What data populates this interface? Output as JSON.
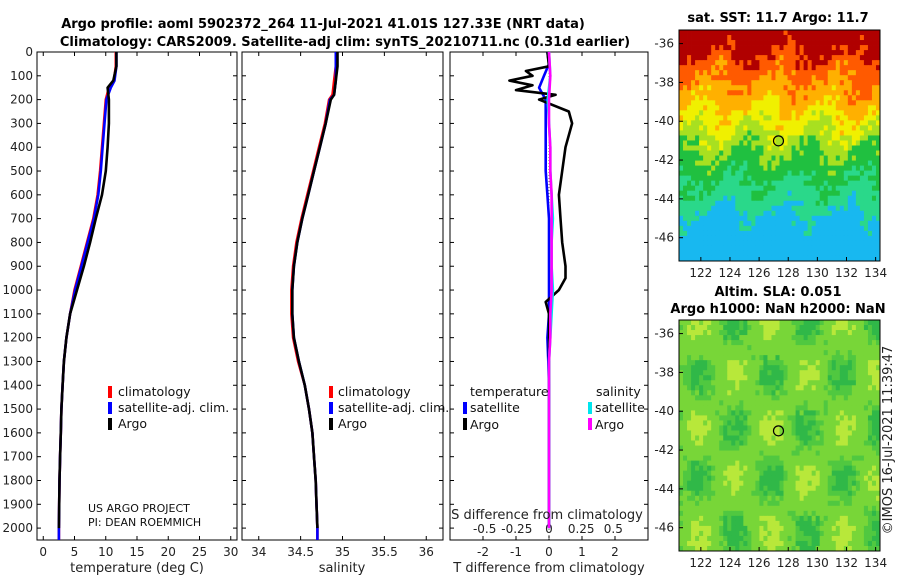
{
  "titles": {
    "line1": "Argo profile: aoml 5902372_264 11-Jul-2021 41.01S 127.33E (NRT data)",
    "line2": "Climatology: CARS2009. Satellite-adj clim: synTS_20210711.nc (0.31d earlier)",
    "sst": "sat. SST: 11.7 Argo: 11.7",
    "sla1": "Altim. SLA: 0.051",
    "sla2": "Argo h1000: NaN h2000: NaN"
  },
  "credit": {
    "line1": "US ARGO PROJECT",
    "line2": "PI: DEAN ROEMMICH"
  },
  "timestamp": "©IMOS 16-Jul-2021 11:39:47",
  "legend_profile": [
    "climatology",
    "satellite-adj. clim.",
    "Argo"
  ],
  "legend_diff": {
    "temp_head": "temperature",
    "sal_head": "salinity",
    "temp_items": [
      "satellite",
      "Argo"
    ],
    "sal_items": [
      "satellite",
      "Argo"
    ]
  },
  "colors": {
    "clim": "#ff0000",
    "sat": "#0000ff",
    "argo": "#000000",
    "sat_sal": "#00e5ee",
    "argo_sal": "#ff00ff"
  },
  "chart_data": [
    {
      "type": "line",
      "name": "temperature",
      "xlabel": "temperature (deg C)",
      "ylabel": "",
      "xlim": [
        -1,
        31
      ],
      "ylim": [
        2050,
        0
      ],
      "xticks": [
        0,
        5,
        10,
        15,
        20,
        25,
        30
      ],
      "yticks": [
        0,
        100,
        200,
        300,
        400,
        500,
        600,
        700,
        800,
        900,
        1000,
        1100,
        1200,
        1300,
        1400,
        1500,
        1600,
        1700,
        1800,
        1900,
        2000
      ],
      "series": [
        {
          "name": "climatology",
          "depth": [
            0,
            60,
            120,
            150,
            200,
            300,
            400,
            500,
            600,
            700,
            800,
            900,
            1000,
            1100,
            1200,
            1300,
            1400,
            1500,
            1600,
            1700,
            1800,
            1900,
            2000,
            2050
          ],
          "values": [
            11.6,
            11.6,
            11.3,
            10.5,
            10.0,
            9.7,
            9.4,
            9.1,
            8.7,
            8.0,
            7.0,
            6.0,
            5.0,
            4.3,
            3.7,
            3.3,
            3.1,
            2.9,
            2.8,
            2.7,
            2.6,
            2.55,
            2.5,
            2.5
          ]
        },
        {
          "name": "satellite-adj. clim.",
          "depth": [
            0,
            60,
            120,
            150,
            200,
            300,
            400,
            500,
            600,
            700,
            800,
            900,
            1000,
            1100,
            1200,
            1300,
            1400,
            1500,
            1600,
            1700,
            1800,
            1900,
            2000,
            2050
          ],
          "values": [
            11.7,
            11.7,
            11.4,
            10.8,
            10.1,
            9.8,
            9.5,
            9.2,
            8.8,
            8.1,
            7.1,
            6.1,
            5.1,
            4.3,
            3.7,
            3.3,
            3.1,
            2.9,
            2.8,
            2.7,
            2.6,
            2.55,
            2.5,
            2.5
          ]
        },
        {
          "name": "Argo",
          "depth": [
            0,
            60,
            120,
            150,
            200,
            300,
            400,
            500,
            600,
            700,
            800,
            900,
            1000,
            1100,
            1200,
            1300,
            1400,
            1500,
            1600,
            1700,
            1800,
            1900,
            2000
          ],
          "values": [
            11.7,
            11.7,
            11.2,
            10.3,
            10.5,
            10.5,
            10.3,
            10.0,
            9.4,
            8.4,
            7.5,
            6.5,
            5.4,
            4.3,
            3.7,
            3.3,
            3.1,
            2.9,
            2.8,
            2.7,
            2.6,
            2.55,
            2.5
          ]
        }
      ]
    },
    {
      "type": "line",
      "name": "salinity",
      "xlabel": "salinity",
      "ylabel": "",
      "xlim": [
        33.8,
        36.2
      ],
      "ylim": [
        2050,
        0
      ],
      "xticks": [
        34,
        34.5,
        35,
        35.5,
        36
      ],
      "xticklabels": [
        "34",
        "34.5",
        "35",
        "35.5",
        "36"
      ],
      "series": [
        {
          "name": "climatology",
          "depth": [
            0,
            60,
            120,
            180,
            200,
            300,
            400,
            500,
            600,
            700,
            800,
            900,
            1000,
            1100,
            1200,
            1300,
            1400,
            1500,
            1600,
            1700,
            1800,
            1900,
            2000,
            2050
          ],
          "values": [
            34.92,
            34.92,
            34.9,
            34.88,
            34.84,
            34.79,
            34.72,
            34.65,
            34.58,
            34.51,
            34.45,
            34.41,
            34.39,
            34.39,
            34.41,
            34.47,
            34.55,
            34.6,
            34.64,
            34.66,
            34.68,
            34.69,
            34.7,
            34.7
          ]
        },
        {
          "name": "satellite-adj. clim.",
          "depth": [
            0,
            60,
            120,
            180,
            200,
            300,
            400,
            500,
            600,
            700,
            800,
            900,
            1000,
            1100,
            1200,
            1300,
            1400,
            1500,
            1600,
            1700,
            1800,
            1900,
            2000,
            2050
          ],
          "values": [
            34.92,
            34.92,
            34.92,
            34.9,
            34.85,
            34.8,
            34.73,
            34.66,
            34.59,
            34.52,
            34.46,
            34.42,
            34.4,
            34.4,
            34.42,
            34.48,
            34.55,
            34.6,
            34.64,
            34.66,
            34.68,
            34.69,
            34.7,
            34.7
          ]
        },
        {
          "name": "Argo",
          "depth": [
            0,
            60,
            120,
            180,
            200,
            300,
            400,
            500,
            600,
            700,
            800,
            900,
            1000,
            1100,
            1200,
            1300,
            1400,
            1500,
            1600,
            1700,
            1800,
            1900,
            2000
          ],
          "values": [
            34.94,
            34.94,
            34.92,
            34.9,
            34.86,
            34.8,
            34.73,
            34.66,
            34.59,
            34.52,
            34.46,
            34.42,
            34.4,
            34.4,
            34.42,
            34.48,
            34.55,
            34.6,
            34.64,
            34.66,
            34.68,
            34.69,
            34.7
          ]
        }
      ]
    },
    {
      "type": "line",
      "name": "difference",
      "xlabel": "T difference from climatology",
      "xlabel_top": "S difference from climatology",
      "xlim": [
        -3,
        3
      ],
      "ylim": [
        2050,
        0
      ],
      "xticks": [
        -2,
        -1,
        0,
        1,
        2
      ],
      "sal_ticks": [
        -0.5,
        -0.25,
        0,
        0.25,
        0.5
      ],
      "sal_ticklabels": [
        "-0.5",
        "-0.25",
        "0",
        "0.25",
        "0.5"
      ],
      "series": [
        {
          "name": "temperature satellite",
          "depth": [
            0,
            50,
            100,
            150,
            200,
            300,
            400,
            500,
            600,
            700,
            800,
            900,
            1000,
            1100,
            1200,
            1300,
            1400,
            1500,
            1600,
            1700,
            1800,
            1900,
            2000
          ],
          "values": [
            -0.05,
            0.0,
            -0.15,
            -0.3,
            -0.1,
            -0.1,
            -0.1,
            -0.1,
            -0.05,
            0.0,
            0.0,
            0.0,
            0.0,
            0.0,
            -0.05,
            -0.02,
            0.0,
            0.0,
            0.0,
            0.0,
            0.0,
            0.0,
            0.0
          ]
        },
        {
          "name": "temperature Argo",
          "depth": [
            0,
            60,
            80,
            100,
            120,
            140,
            160,
            180,
            200,
            250,
            300,
            400,
            500,
            600,
            700,
            800,
            900,
            950,
            1000,
            1050,
            1100,
            1200,
            1300,
            1400,
            1500,
            1600,
            1700,
            1800,
            1900,
            2000
          ],
          "values": [
            -0.05,
            0.0,
            -0.7,
            -0.5,
            -1.2,
            -0.5,
            -1.0,
            0.2,
            -0.3,
            0.6,
            0.7,
            0.5,
            0.4,
            0.3,
            0.35,
            0.4,
            0.5,
            0.5,
            0.3,
            -0.1,
            0.0,
            0.0,
            0.0,
            0.0,
            0.0,
            0.0,
            0.0,
            0.0,
            0.0,
            0.0
          ]
        },
        {
          "name": "salinity satellite",
          "depth": [
            0,
            100,
            200,
            300,
            400,
            500,
            600,
            700,
            800,
            900,
            1000,
            1100,
            1200,
            1300,
            1400,
            1500,
            1600,
            1700,
            1800,
            1900,
            2000
          ],
          "values": [
            0.0,
            0.01,
            -0.01,
            0.0,
            0.01,
            0.01,
            0.02,
            0.03,
            0.02,
            0.02,
            0.03,
            0.02,
            0.01,
            0.0,
            0.0,
            0.0,
            0.0,
            0.0,
            0.0,
            0.0,
            0.0
          ]
        },
        {
          "name": "salinity Argo",
          "depth": [
            0,
            100,
            200,
            300,
            400,
            500,
            600,
            700,
            800,
            900,
            1000,
            1100,
            1200,
            1300,
            1400,
            1500,
            1600,
            1700,
            1800,
            1900,
            2000
          ],
          "values": [
            0.0,
            0.01,
            0.0,
            0.0,
            0.01,
            0.01,
            0.02,
            0.02,
            0.02,
            0.02,
            0.02,
            0.01,
            0.01,
            0.0,
            0.0,
            0.0,
            0.0,
            0.0,
            0.0,
            0.0,
            0.0
          ]
        }
      ]
    },
    {
      "type": "heatmap",
      "name": "sat-sst-map",
      "xticks": [
        122,
        124,
        126,
        128,
        130,
        132,
        134
      ],
      "yticks": [
        -36,
        -38,
        -40,
        -42,
        -44,
        -46
      ],
      "xlim": [
        120.5,
        134.3
      ],
      "ylim": [
        -47.2,
        -35.3
      ],
      "marker": {
        "lon": 127.33,
        "lat": -41.01
      }
    },
    {
      "type": "heatmap",
      "name": "altim-sla-map",
      "xticks": [
        122,
        124,
        126,
        128,
        130,
        132,
        134
      ],
      "yticks": [
        -36,
        -38,
        -40,
        -42,
        -44,
        -46
      ],
      "xlim": [
        120.5,
        134.3
      ],
      "ylim": [
        -47.2,
        -35.3
      ],
      "marker": {
        "lon": 127.33,
        "lat": -41.01
      }
    }
  ]
}
